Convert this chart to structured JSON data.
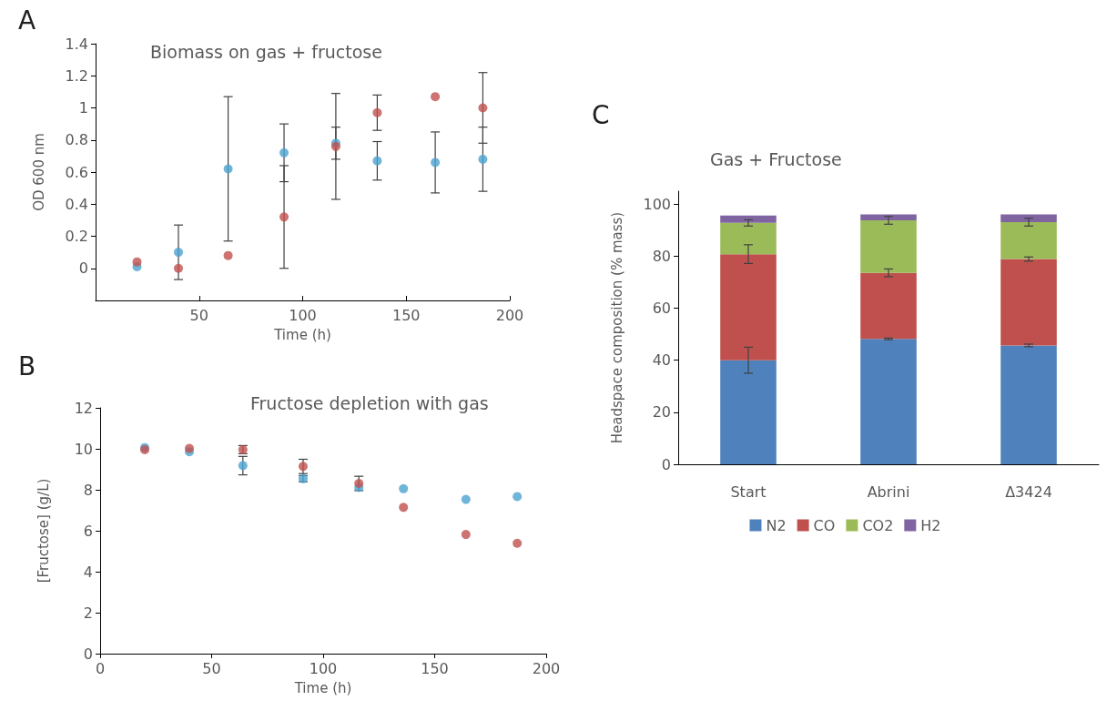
{
  "chart_data": [
    {
      "type": "scatter",
      "title": "Biomass on gas + fructose",
      "xlabel": "Time (h)",
      "ylabel": "OD 600 nm",
      "annotations": [
        "A"
      ],
      "marker": "circle",
      "x": [
        20,
        40,
        64,
        91,
        116,
        136,
        164,
        187
      ],
      "xlim": [
        0,
        200
      ],
      "xticks": [
        50,
        100,
        150,
        200
      ],
      "ylim": [
        -0.2,
        1.4
      ],
      "yticks": [
        0,
        0.2,
        0.4,
        0.6,
        0.8,
        1,
        1.2,
        1.4
      ],
      "series": [
        {
          "color": "#4ba3cf",
          "values": [
            0.01,
            0.1,
            0.62,
            0.72,
            0.78,
            0.67,
            0.66,
            0.68
          ],
          "errors": [
            null,
            0.17,
            0.45,
            0.18,
            0.1,
            0.12,
            0.19,
            0.2
          ]
        },
        {
          "color": "#c0504d",
          "values": [
            0.04,
            0.0,
            0.08,
            0.32,
            0.76,
            0.97,
            1.07,
            1.0
          ],
          "errors": [
            null,
            null,
            null,
            0.32,
            0.33,
            0.11,
            null,
            0.22
          ]
        }
      ]
    },
    {
      "type": "scatter",
      "title": "Fructose depletion with gas",
      "xlabel": "Time (h)",
      "ylabel": "[Fructose] (g/L)",
      "annotations": [
        "B"
      ],
      "marker": "circle",
      "x": [
        20,
        40,
        64,
        91,
        116,
        136,
        164,
        187
      ],
      "xlim": [
        0,
        200
      ],
      "xticks": [
        0,
        50,
        100,
        150,
        200
      ],
      "ylim": [
        0,
        12
      ],
      "yticks": [
        0,
        2,
        4,
        6,
        8,
        10,
        12
      ],
      "series": [
        {
          "color": "#4ba3cf",
          "values": [
            10.06,
            9.86,
            9.18,
            8.54,
            8.11,
            8.05,
            7.53,
            7.67
          ],
          "errors": [
            null,
            null,
            0.45,
            0.15,
            null,
            null,
            null,
            null
          ]
        },
        {
          "color": "#c0504d",
          "values": [
            9.96,
            10.02,
            9.96,
            9.14,
            8.31,
            7.14,
            5.82,
            5.39
          ],
          "errors": [
            null,
            null,
            0.2,
            0.35,
            0.35,
            null,
            null,
            null
          ]
        }
      ]
    },
    {
      "type": "bar",
      "stacked": true,
      "title": "Gas + Fructose",
      "ylabel": "Headspace composition (% mass)",
      "annotations": [
        "C"
      ],
      "legend": "bottom",
      "categories": [
        "Start",
        "Abrini",
        "Δ3424"
      ],
      "ylim": [
        0,
        105
      ],
      "yticks": [
        0,
        20,
        40,
        60,
        80,
        100
      ],
      "series": [
        {
          "name": "N2",
          "color": "#4f81bd",
          "values": [
            40,
            48.2,
            45.7
          ],
          "errors": [
            5,
            0.3,
            0.5
          ]
        },
        {
          "name": "CO",
          "color": "#c0504d",
          "values": [
            40.8,
            25.4,
            33.2
          ],
          "errors": [
            3.6,
            1.5,
            0.8
          ]
        },
        {
          "name": "CO2",
          "color": "#9bbb59",
          "values": [
            12,
            20.2,
            14.2
          ],
          "errors": [
            1.2,
            1.5,
            1.5
          ]
        },
        {
          "name": "H2",
          "color": "#8064a2",
          "values": [
            2.8,
            2.3,
            3.0
          ]
        }
      ]
    }
  ]
}
